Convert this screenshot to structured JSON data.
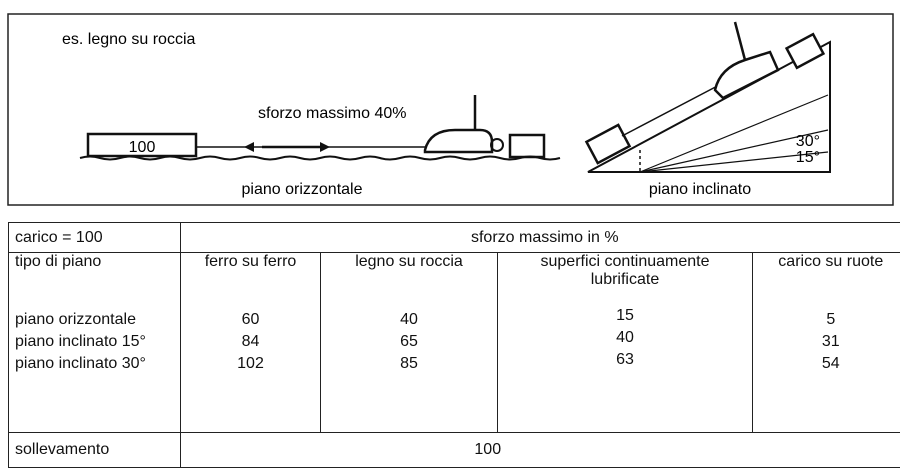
{
  "illustration": {
    "example": "es. legno su roccia",
    "force": "sforzo massimo  40%",
    "load": "100",
    "angle_30": "30°",
    "angle_15": "15°",
    "horizontal_caption": "piano orizzontale",
    "inclined_caption": "piano inclinato"
  },
  "table": {
    "load": "carico = 100",
    "header": "sforzo massimo in %",
    "row_header": "tipo di piano",
    "columns": [
      "ferro su ferro",
      "legno su roccia",
      "superfici continuamente lubrificate",
      "carico su ruote"
    ],
    "rows": [
      {
        "label": "piano orizzontale",
        "values": [
          60,
          40,
          15,
          5
        ]
      },
      {
        "label": "piano inclinato 15°",
        "values": [
          84,
          65,
          40,
          31
        ]
      },
      {
        "label": "piano inclinato 30°",
        "values": [
          102,
          85,
          63,
          54
        ]
      }
    ],
    "lifting": {
      "label": "sollevamento",
      "value": 100
    }
  }
}
